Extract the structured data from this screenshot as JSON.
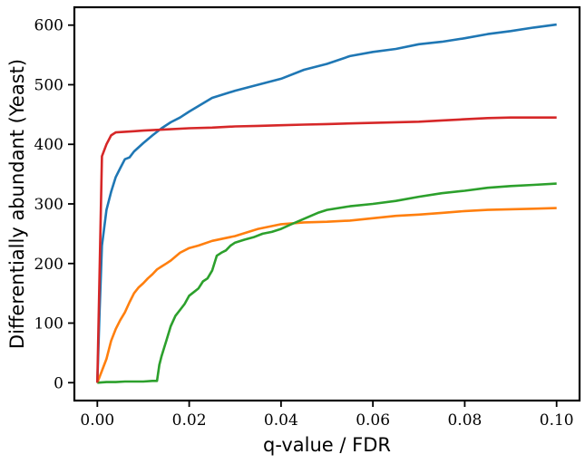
{
  "chart_data": {
    "type": "line",
    "title": "",
    "xlabel": "q-value / FDR",
    "ylabel": "Differentially abundant (Yeast)",
    "xlim": [
      -0.005,
      0.105
    ],
    "ylim": [
      -30,
      630
    ],
    "xticks": [
      0.0,
      0.02,
      0.04,
      0.06,
      0.08,
      0.1
    ],
    "xtick_labels": [
      "0.00",
      "0.02",
      "0.04",
      "0.06",
      "0.08",
      "0.10"
    ],
    "yticks": [
      0,
      100,
      200,
      300,
      400,
      500,
      600
    ],
    "ytick_labels": [
      "0",
      "100",
      "200",
      "300",
      "400",
      "500",
      "600"
    ],
    "grid": false,
    "legend": "none",
    "series": [
      {
        "color": "#1f77b4",
        "x": [
          0.0,
          0.0005,
          0.001,
          0.002,
          0.003,
          0.004,
          0.005,
          0.006,
          0.007,
          0.008,
          0.01,
          0.012,
          0.014,
          0.016,
          0.018,
          0.02,
          0.025,
          0.03,
          0.035,
          0.04,
          0.045,
          0.05,
          0.055,
          0.06,
          0.065,
          0.07,
          0.075,
          0.08,
          0.085,
          0.09,
          0.095,
          0.1
        ],
        "y": [
          0,
          120,
          230,
          290,
          320,
          345,
          360,
          375,
          378,
          388,
          402,
          415,
          427,
          437,
          445,
          455,
          478,
          490,
          500,
          510,
          525,
          535,
          548,
          555,
          560,
          568,
          572,
          578,
          585,
          590,
          596,
          601
        ]
      },
      {
        "color": "#ff7f0e",
        "x": [
          0.0,
          0.001,
          0.002,
          0.003,
          0.004,
          0.005,
          0.006,
          0.007,
          0.008,
          0.009,
          0.01,
          0.011,
          0.012,
          0.013,
          0.014,
          0.015,
          0.016,
          0.018,
          0.02,
          0.022,
          0.025,
          0.03,
          0.035,
          0.04,
          0.045,
          0.05,
          0.055,
          0.06,
          0.065,
          0.07,
          0.075,
          0.08,
          0.085,
          0.09,
          0.095,
          0.1
        ],
        "y": [
          0,
          20,
          40,
          70,
          90,
          105,
          118,
          135,
          150,
          160,
          167,
          175,
          182,
          190,
          195,
          200,
          205,
          218,
          226,
          230,
          238,
          246,
          258,
          266,
          269,
          270,
          272,
          276,
          280,
          282,
          285,
          288,
          290,
          291,
          292,
          293
        ]
      },
      {
        "color": "#2ca02c",
        "x": [
          0.0,
          0.002,
          0.004,
          0.006,
          0.008,
          0.01,
          0.012,
          0.013,
          0.0135,
          0.014,
          0.015,
          0.016,
          0.017,
          0.018,
          0.019,
          0.02,
          0.021,
          0.022,
          0.023,
          0.024,
          0.025,
          0.026,
          0.027,
          0.028,
          0.029,
          0.03,
          0.032,
          0.034,
          0.036,
          0.038,
          0.04,
          0.042,
          0.045,
          0.048,
          0.05,
          0.055,
          0.06,
          0.065,
          0.07,
          0.075,
          0.08,
          0.085,
          0.09,
          0.095,
          0.1
        ],
        "y": [
          0,
          1,
          1,
          2,
          2,
          2,
          3,
          3,
          30,
          45,
          70,
          95,
          112,
          122,
          132,
          146,
          152,
          158,
          170,
          175,
          188,
          213,
          218,
          222,
          230,
          235,
          240,
          244,
          250,
          253,
          258,
          265,
          275,
          285,
          290,
          296,
          300,
          305,
          312,
          318,
          322,
          327,
          330,
          332,
          334
        ]
      },
      {
        "color": "#d62728",
        "x": [
          0.0,
          0.001,
          0.002,
          0.003,
          0.004,
          0.006,
          0.008,
          0.01,
          0.015,
          0.02,
          0.025,
          0.03,
          0.035,
          0.04,
          0.045,
          0.05,
          0.055,
          0.06,
          0.065,
          0.07,
          0.075,
          0.08,
          0.085,
          0.09,
          0.095,
          0.1
        ],
        "y": [
          0,
          380,
          400,
          415,
          420,
          421,
          422,
          423,
          425,
          427,
          428,
          430,
          431,
          432,
          433,
          434,
          435,
          436,
          437,
          438,
          440,
          442,
          444,
          445,
          445,
          445
        ]
      }
    ]
  }
}
